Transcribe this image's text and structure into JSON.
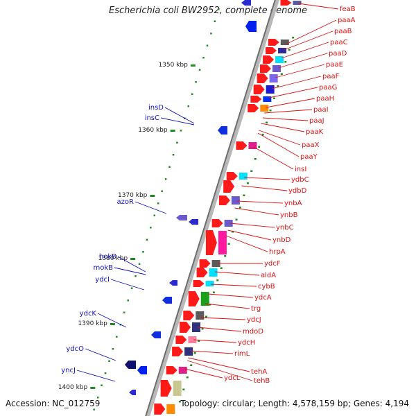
{
  "title": "Escherichia coli BW2952, complete genome",
  "footer": {
    "accession": "Accession: NC_012759",
    "topology": "Topology: circular; Length: 4,578,159 bp; Genes: 4,194"
  },
  "colors": {
    "forward_label": "#e01010",
    "reverse_label": "#1010c8",
    "backbone": "#8a8a8a",
    "tick": "#1e8c1e"
  },
  "kbp_ticks": [
    "1350 kbp",
    "1360 kbp",
    "1370 kbp",
    "1380 kbp",
    "1390 kbp",
    "1400 kbp"
  ],
  "forward_genes": [
    "feaB",
    "paaA",
    "paaB",
    "paaC",
    "paaD",
    "paaE",
    "paaF",
    "paaG",
    "paaH",
    "paaI",
    "paaJ",
    "paaK",
    "paaX",
    "paaY",
    "insI",
    "ydbC",
    "ydbD",
    "ynbA",
    "ynbB",
    "ynbC",
    "ynbD",
    "hrpA",
    "ydcF",
    "aldA",
    "cybB",
    "ydcA",
    "trg",
    "ydcJ",
    "mdoD",
    "ydcH",
    "rimL",
    "tehA",
    "tehB",
    "ydcL"
  ],
  "reverse_genes": [
    "insD",
    "insC",
    "azoR",
    "hokB",
    "mokB",
    "ydcI",
    "ydcK",
    "ydcO",
    "yncJ"
  ]
}
